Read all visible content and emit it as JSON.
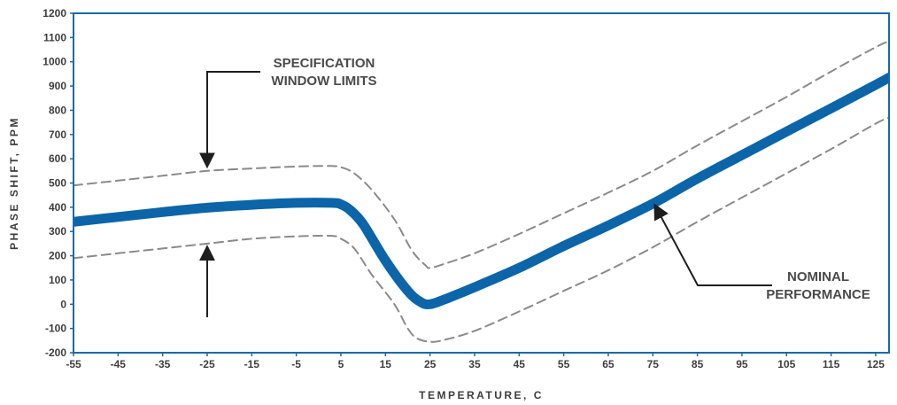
{
  "chart_data": {
    "type": "line",
    "title": "",
    "xlabel": "TEMPERATURE, C",
    "ylabel": "PHASE SHIFT, PPM",
    "xlim": [
      -55,
      128
    ],
    "ylim": [
      -200,
      1200
    ],
    "x_ticks": [
      -55,
      -45,
      -35,
      -25,
      -15,
      -5,
      5,
      15,
      25,
      35,
      45,
      55,
      65,
      75,
      85,
      95,
      105,
      115,
      125
    ],
    "y_ticks": [
      -200,
      -100,
      0,
      100,
      200,
      300,
      400,
      500,
      600,
      700,
      800,
      900,
      1000,
      1100,
      1200
    ],
    "grid": false,
    "colors": {
      "nominal": "#0b65a8",
      "limits": "#8a8a8a",
      "frame": "#1a6aa6",
      "text": "#3d3d3d"
    },
    "series": [
      {
        "label_lines": [
          "NOMINAL",
          "PERFORMANCE"
        ],
        "style": "solid-thick",
        "points": [
          [
            -55,
            340
          ],
          [
            -45,
            360
          ],
          [
            -35,
            380
          ],
          [
            -25,
            398
          ],
          [
            -15,
            410
          ],
          [
            -5,
            418
          ],
          [
            3,
            418
          ],
          [
            5,
            412
          ],
          [
            7,
            390
          ],
          [
            10,
            330
          ],
          [
            15,
            180
          ],
          [
            20,
            55
          ],
          [
            23,
            8
          ],
          [
            25,
            0
          ],
          [
            28,
            18
          ],
          [
            35,
            70
          ],
          [
            45,
            150
          ],
          [
            55,
            240
          ],
          [
            65,
            325
          ],
          [
            75,
            415
          ],
          [
            85,
            518
          ],
          [
            95,
            615
          ],
          [
            105,
            712
          ],
          [
            115,
            808
          ],
          [
            125,
            905
          ],
          [
            128,
            935
          ]
        ]
      },
      {
        "label_lines": [
          "SPECIFICATION",
          "WINDOW LIMITS"
        ],
        "style": "dashed",
        "part": "upper",
        "points": [
          [
            -55,
            490
          ],
          [
            -45,
            510
          ],
          [
            -35,
            530
          ],
          [
            -25,
            550
          ],
          [
            -15,
            560
          ],
          [
            -5,
            568
          ],
          [
            3,
            570
          ],
          [
            5,
            565
          ],
          [
            8,
            540
          ],
          [
            12,
            470
          ],
          [
            17,
            350
          ],
          [
            21,
            220
          ],
          [
            24,
            160
          ],
          [
            25,
            150
          ],
          [
            28,
            165
          ],
          [
            35,
            210
          ],
          [
            45,
            290
          ],
          [
            55,
            375
          ],
          [
            65,
            460
          ],
          [
            75,
            550
          ],
          [
            85,
            655
          ],
          [
            95,
            755
          ],
          [
            105,
            855
          ],
          [
            115,
            960
          ],
          [
            125,
            1060
          ],
          [
            128,
            1085
          ]
        ]
      },
      {
        "label_lines": [
          "SPECIFICATION",
          "WINDOW LIMITS"
        ],
        "style": "dashed",
        "part": "lower",
        "points": [
          [
            -55,
            190
          ],
          [
            -45,
            210
          ],
          [
            -35,
            230
          ],
          [
            -25,
            250
          ],
          [
            -15,
            270
          ],
          [
            -5,
            280
          ],
          [
            3,
            282
          ],
          [
            5,
            270
          ],
          [
            8,
            230
          ],
          [
            12,
            120
          ],
          [
            17,
            0
          ],
          [
            20,
            -100
          ],
          [
            22,
            -140
          ],
          [
            25,
            -155
          ],
          [
            28,
            -148
          ],
          [
            35,
            -110
          ],
          [
            45,
            -30
          ],
          [
            55,
            55
          ],
          [
            65,
            140
          ],
          [
            75,
            235
          ],
          [
            85,
            340
          ],
          [
            95,
            440
          ],
          [
            105,
            540
          ],
          [
            115,
            640
          ],
          [
            125,
            745
          ],
          [
            128,
            770
          ]
        ]
      }
    ],
    "annotations": [
      {
        "lines": [
          "SPECIFICATION",
          "WINDOW LIMITS"
        ],
        "arrows_to": [
          [
            -25,
            555
          ],
          [
            -25,
            250
          ]
        ]
      },
      {
        "lines": [
          "NOMINAL",
          "PERFORMANCE"
        ],
        "arrow_to": [
          75,
          425
        ]
      }
    ]
  }
}
